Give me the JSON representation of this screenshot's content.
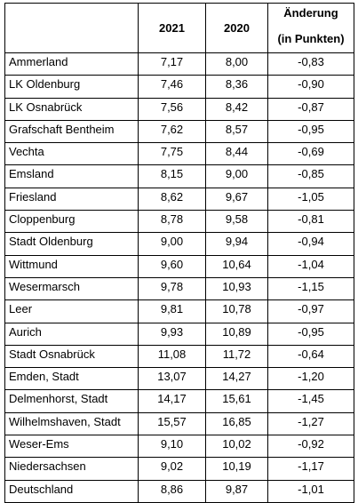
{
  "table": {
    "headers": {
      "name": "",
      "year_2021": "2021",
      "year_2020": "2020",
      "change_line1": "Änderung",
      "change_line2": "(in Punkten)"
    },
    "rows": [
      {
        "name": "Ammerland",
        "v2021": "7,17",
        "v2020": "8,00",
        "change": "-0,83"
      },
      {
        "name": "LK Oldenburg",
        "v2021": "7,46",
        "v2020": "8,36",
        "change": "-0,90"
      },
      {
        "name": "LK Osnabrück",
        "v2021": "7,56",
        "v2020": "8,42",
        "change": "-0,87"
      },
      {
        "name": "Grafschaft Bentheim",
        "v2021": "7,62",
        "v2020": "8,57",
        "change": "-0,95"
      },
      {
        "name": "Vechta",
        "v2021": "7,75",
        "v2020": "8,44",
        "change": "-0,69"
      },
      {
        "name": "Emsland",
        "v2021": "8,15",
        "v2020": "9,00",
        "change": "-0,85"
      },
      {
        "name": "Friesland",
        "v2021": "8,62",
        "v2020": "9,67",
        "change": "-1,05"
      },
      {
        "name": "Cloppenburg",
        "v2021": "8,78",
        "v2020": "9,58",
        "change": "-0,81"
      },
      {
        "name": "Stadt Oldenburg",
        "v2021": "9,00",
        "v2020": "9,94",
        "change": "-0,94"
      },
      {
        "name": "Wittmund",
        "v2021": "9,60",
        "v2020": "10,64",
        "change": "-1,04"
      },
      {
        "name": "Wesermarsch",
        "v2021": "9,78",
        "v2020": "10,93",
        "change": "-1,15"
      },
      {
        "name": "Leer",
        "v2021": "9,81",
        "v2020": "10,78",
        "change": "-0,97"
      },
      {
        "name": "Aurich",
        "v2021": "9,93",
        "v2020": "10,89",
        "change": "-0,95"
      },
      {
        "name": "Stadt Osnabrück",
        "v2021": "11,08",
        "v2020": "11,72",
        "change": "-0,64"
      },
      {
        "name": "Emden, Stadt",
        "v2021": "13,07",
        "v2020": "14,27",
        "change": "-1,20"
      },
      {
        "name": "Delmenhorst, Stadt",
        "v2021": "14,17",
        "v2020": "15,61",
        "change": "-1,45"
      },
      {
        "name": "Wilhelmshaven, Stadt",
        "v2021": "15,57",
        "v2020": "16,85",
        "change": "-1,27"
      },
      {
        "name": "Weser-Ems",
        "v2021": "9,10",
        "v2020": "10,02",
        "change": "-0,92"
      },
      {
        "name": "Niedersachsen",
        "v2021": "9,02",
        "v2020": "10,19",
        "change": "-1,17"
      },
      {
        "name": "Deutschland",
        "v2021": "8,86",
        "v2020": "9,87",
        "change": "-1,01"
      }
    ]
  }
}
